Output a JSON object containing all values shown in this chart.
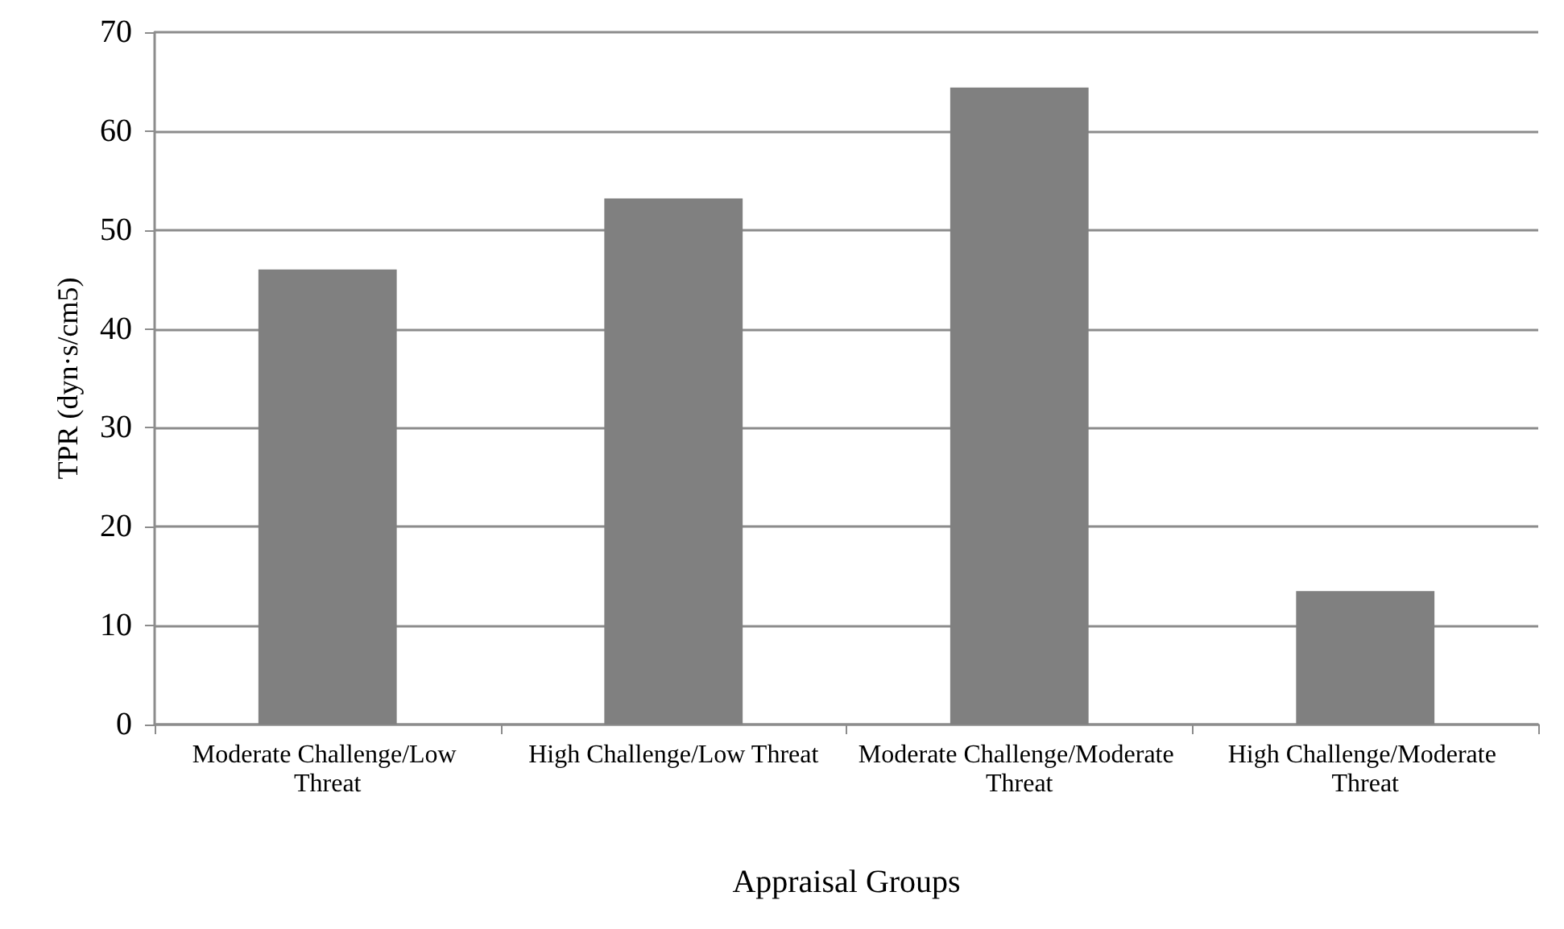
{
  "chart_data": {
    "type": "bar",
    "xlabel": "Appraisal Groups",
    "ylabel": "TPR (dyn·s/cm5)",
    "categories": [
      "Moderate Challenge/Low Threat",
      "High Challenge/Low Threat",
      "Moderate Challenge/Moderate Threat",
      "High Challenge/Moderate Threat"
    ],
    "values": [
      46.0,
      53.2,
      64.4,
      13.5
    ],
    "color": "#808080",
    "ylim": [
      0,
      70
    ],
    "yticks": [
      0,
      10,
      20,
      30,
      40,
      50,
      60,
      70
    ],
    "grid": "y"
  }
}
